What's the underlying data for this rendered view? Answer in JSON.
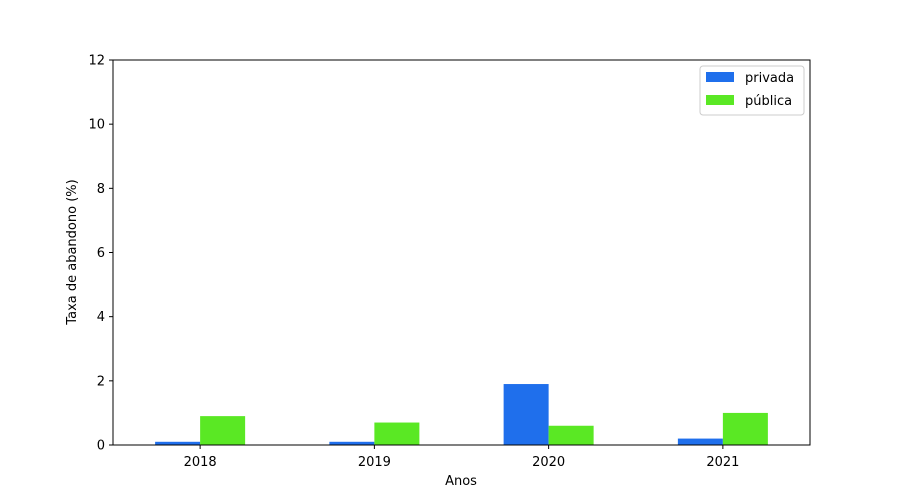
{
  "chart_data": {
    "type": "bar",
    "title": "",
    "xlabel": "Anos",
    "ylabel": "Taxa de abandono (%)",
    "categories": [
      "2018",
      "2019",
      "2020",
      "2021"
    ],
    "ylim": [
      0,
      12
    ],
    "yticks": [
      "0",
      "2",
      "4",
      "6",
      "8",
      "10",
      "12"
    ],
    "grid": false,
    "legend_position": "top-right",
    "series": [
      {
        "name": "privada",
        "color": "#1f6fec",
        "values": [
          0.1,
          0.1,
          1.9,
          0.2
        ]
      },
      {
        "name": "pública",
        "color": "#5ae824",
        "values": [
          0.9,
          0.7,
          0.6,
          1.0
        ]
      }
    ]
  }
}
